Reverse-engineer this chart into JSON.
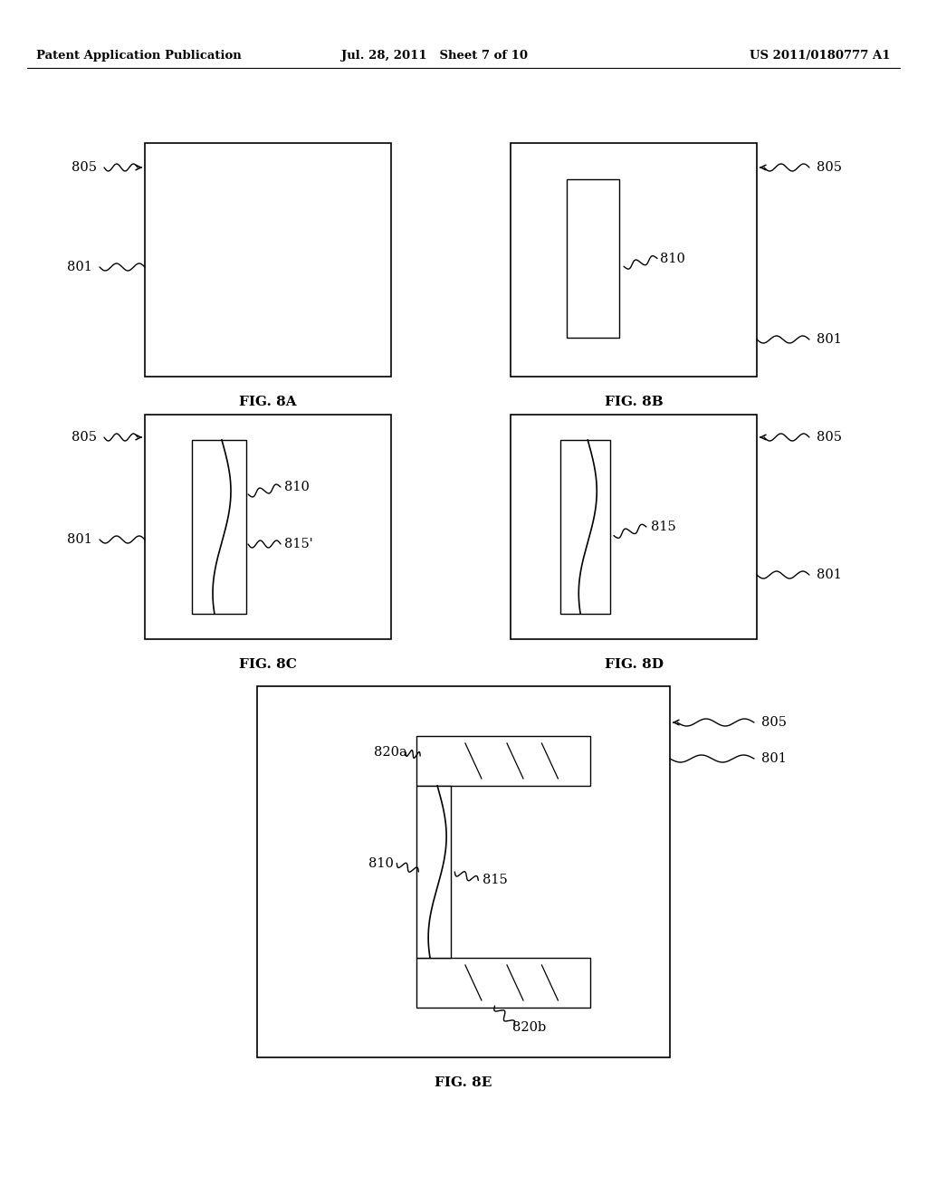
{
  "bg_color": "#ffffff",
  "header_left": "Patent Application Publication",
  "header_mid": "Jul. 28, 2011   Sheet 7 of 10",
  "header_right": "US 2011/0180777 A1"
}
